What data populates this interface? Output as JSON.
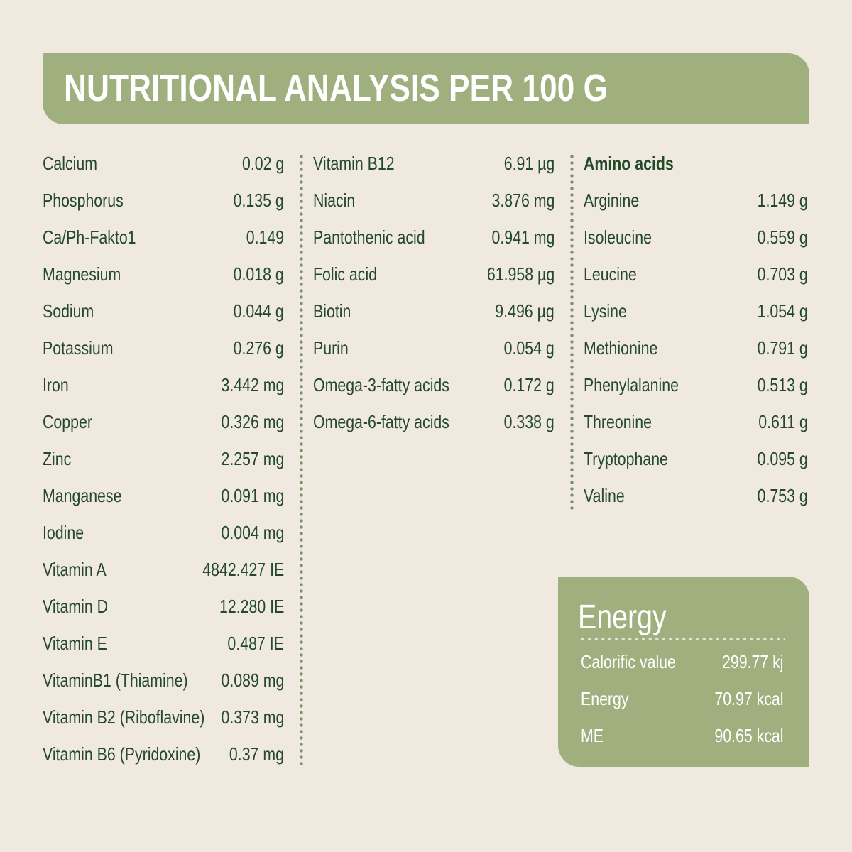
{
  "header": {
    "title": "NUTRITIONAL ANALYSIS PER 100 G"
  },
  "colors": {
    "accent_green": "#9faf7d",
    "text_green": "#244a2a",
    "background": "#efe9e0"
  },
  "columns": {
    "minerals_vitamins": [
      {
        "name": "Calcium",
        "value": "0.02 g"
      },
      {
        "name": "Phosphorus",
        "value": "0.135 g"
      },
      {
        "name": "Ca/Ph-Fakto1",
        "value": "0.149"
      },
      {
        "name": "Magnesium",
        "value": "0.018 g"
      },
      {
        "name": "Sodium",
        "value": "0.044 g"
      },
      {
        "name": "Potassium",
        "value": "0.276 g"
      },
      {
        "name": "Iron",
        "value": "3.442 mg"
      },
      {
        "name": "Copper",
        "value": "0.326 mg"
      },
      {
        "name": "Zinc",
        "value": "2.257 mg"
      },
      {
        "name": "Manganese",
        "value": "0.091 mg"
      },
      {
        "name": "Iodine",
        "value": "0.004 mg"
      },
      {
        "name": "Vitamin A",
        "value": "4842.427 IE"
      },
      {
        "name": "Vitamin D",
        "value": "12.280 IE"
      },
      {
        "name": "Vitamin E",
        "value": "0.487 IE"
      },
      {
        "name": "VitaminB1 (Thiamine)",
        "value": "0.089 mg"
      },
      {
        "name": "Vitamin B2 (Riboflavine)",
        "value": "0.373 mg"
      },
      {
        "name": "Vitamin B6 (Pyridoxine)",
        "value": "0.37 mg"
      }
    ],
    "vitamins_fatty_acids": [
      {
        "name": "Vitamin B12",
        "value": "6.91 µg"
      },
      {
        "name": "Niacin",
        "value": "3.876 mg"
      },
      {
        "name": "Pantothenic acid",
        "value": "0.941 mg"
      },
      {
        "name": "Folic acid",
        "value": "61.958 µg"
      },
      {
        "name": "Biotin",
        "value": "9.496 µg"
      },
      {
        "name": "Purin",
        "value": "0.054 g"
      },
      {
        "name": "Omega-3-fatty acids",
        "value": "0.172 g"
      },
      {
        "name": "Omega-6-fatty acids",
        "value": "0.338 g"
      }
    ],
    "amino_acids": {
      "heading": "Amino acids",
      "items": [
        {
          "name": "Arginine",
          "value": "1.149 g"
        },
        {
          "name": "Isoleucine",
          "value": "0.559 g"
        },
        {
          "name": "Leucine",
          "value": "0.703 g"
        },
        {
          "name": "Lysine",
          "value": "1.054 g"
        },
        {
          "name": "Methionine",
          "value": "0.791 g"
        },
        {
          "name": "Phenylalanine",
          "value": "0.513 g"
        },
        {
          "name": "Threonine",
          "value": "0.611 g"
        },
        {
          "name": "Tryptophane",
          "value": "0.095 g"
        },
        {
          "name": "Valine",
          "value": "0.753 g"
        }
      ]
    }
  },
  "energy": {
    "title": "Energy",
    "items": [
      {
        "name": "Calorific value",
        "value": "299.77 kj"
      },
      {
        "name": "Energy",
        "value": "70.97 kcal"
      },
      {
        "name": "ME",
        "value": "90.65 kcal"
      }
    ]
  }
}
